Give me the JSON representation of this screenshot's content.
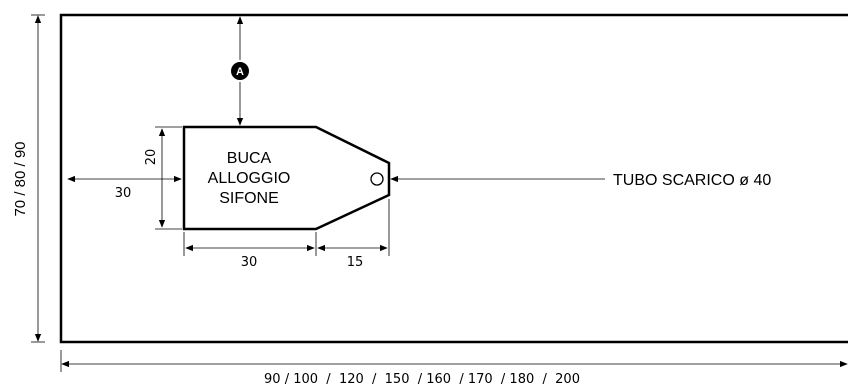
{
  "labels": {
    "height_options": "70 / 80 / 90",
    "width_options": "90 / 100  /  120  /  150  / 160  / 170  / 180  /  200",
    "dim_left_offset": "30",
    "dim_hole_height": "20",
    "dim_hole_width": "30",
    "dim_hole_taper": "15",
    "marker": "A",
    "pipe_label": "TUBO SCARICO ø 40",
    "hole_label": [
      "BUCA",
      "ALLOGGIO",
      "SIFONE"
    ]
  },
  "colors": {
    "stroke": "#000000",
    "background": "#ffffff"
  }
}
